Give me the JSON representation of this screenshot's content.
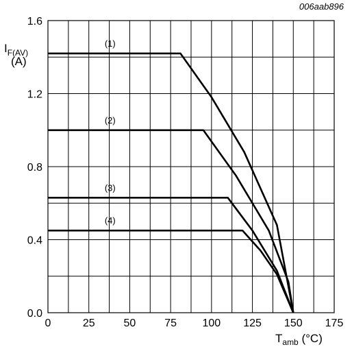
{
  "chart_data": {
    "type": "line",
    "figure_id": "006aab896",
    "ylabel": {
      "symbol": "I",
      "subscript": "F(AV)",
      "unit": "(A)"
    },
    "xlabel": {
      "symbol": "T",
      "subscript": "amb",
      "unit": " (°C)"
    },
    "xlim": [
      0,
      175
    ],
    "ylim": [
      0,
      1.6
    ],
    "x_ticks": [
      "0",
      "25",
      "50",
      "75",
      "100",
      "125",
      "150",
      "175"
    ],
    "y_ticks": [
      "0.0",
      "0.4",
      "0.8",
      "1.2",
      "1.6"
    ],
    "grid": true,
    "series": [
      {
        "name": "(1)",
        "points": [
          [
            0,
            1.42
          ],
          [
            81,
            1.42
          ],
          [
            100,
            1.18
          ],
          [
            120,
            0.88
          ],
          [
            140,
            0.48
          ],
          [
            150,
            0.0
          ]
        ]
      },
      {
        "name": "(2)",
        "points": [
          [
            0,
            1.0
          ],
          [
            95,
            1.0
          ],
          [
            115,
            0.75
          ],
          [
            135,
            0.45
          ],
          [
            147,
            0.17
          ],
          [
            150,
            0.0
          ]
        ]
      },
      {
        "name": "(3)",
        "points": [
          [
            0,
            0.63
          ],
          [
            110,
            0.63
          ],
          [
            125,
            0.45
          ],
          [
            140,
            0.23
          ],
          [
            150,
            0.0
          ]
        ]
      },
      {
        "name": "(4)",
        "points": [
          [
            0,
            0.45
          ],
          [
            119,
            0.45
          ],
          [
            130,
            0.34
          ],
          [
            140,
            0.21
          ],
          [
            150,
            0.0
          ]
        ]
      }
    ]
  }
}
